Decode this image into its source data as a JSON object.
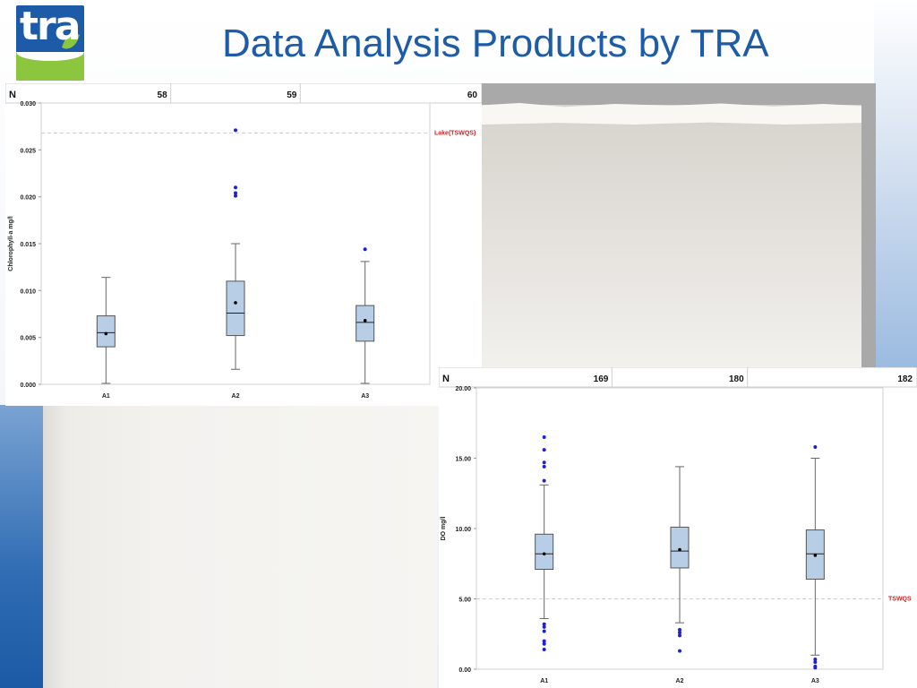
{
  "page": {
    "title": "Data Analysis Products by TRA"
  },
  "logo": {
    "text": "tra"
  },
  "chart_data": [
    {
      "type": "box",
      "n_label": "N",
      "n_values": [
        "58",
        "59",
        "60"
      ],
      "categories": [
        "A1",
        "A2",
        "A3"
      ],
      "ylabel": "Chlorophyll-a mg/l",
      "ylim": [
        0,
        0.03
      ],
      "yticks": [
        0,
        0.005,
        0.01,
        0.015,
        0.02,
        0.025,
        0.03
      ],
      "ytick_labels": [
        "0.000",
        "0.005",
        "0.010",
        "0.015",
        "0.020",
        "0.025",
        "0.030"
      ],
      "reference_line": {
        "value": 0.0268,
        "label": "Lake(TSWQS)",
        "color": "#cc2222"
      },
      "box_color": "#b8cde6",
      "outlier_color": "#1f1fd6",
      "boxes": [
        {
          "category": "A1",
          "whisker_low": 0.0001,
          "q1": 0.004,
          "median": 0.0055,
          "q3": 0.0073,
          "whisker_high": 0.0114,
          "mean": 0.0054,
          "outliers": []
        },
        {
          "category": "A2",
          "whisker_low": 0.0016,
          "q1": 0.0052,
          "median": 0.0076,
          "q3": 0.011,
          "whisker_high": 0.015,
          "mean": 0.0087,
          "outliers": [
            0.0201,
            0.0204,
            0.021,
            0.0271
          ]
        },
        {
          "category": "A3",
          "whisker_low": 0.0001,
          "q1": 0.0046,
          "median": 0.0066,
          "q3": 0.0084,
          "whisker_high": 0.0131,
          "mean": 0.0068,
          "outliers": [
            0.0144
          ]
        }
      ]
    },
    {
      "type": "box",
      "n_label": "N",
      "n_values": [
        "169",
        "180",
        "182"
      ],
      "categories": [
        "A1",
        "A2",
        "A3"
      ],
      "ylabel": "DO mg/l",
      "ylim": [
        0,
        20
      ],
      "yticks": [
        0,
        5,
        10,
        15,
        20
      ],
      "ytick_labels": [
        "0.00",
        "5.00",
        "10.00",
        "15.00",
        "20.00"
      ],
      "reference_line": {
        "value": 5,
        "label": "TSWQS",
        "color": "#cc2222"
      },
      "box_color": "#b8cde6",
      "outlier_color": "#1f1fd6",
      "boxes": [
        {
          "category": "A1",
          "whisker_low": 3.6,
          "q1": 7.1,
          "median": 8.2,
          "q3": 9.6,
          "whisker_high": 13.1,
          "mean": 8.2,
          "outliers": [
            1.4,
            1.8,
            2.0,
            2.7,
            3.0,
            3.2,
            13.4,
            14.4,
            14.7,
            15.6,
            16.5
          ]
        },
        {
          "category": "A2",
          "whisker_low": 3.3,
          "q1": 7.2,
          "median": 8.4,
          "q3": 10.1,
          "whisker_high": 14.4,
          "mean": 8.5,
          "outliers": [
            1.3,
            2.4,
            2.6,
            2.8
          ]
        },
        {
          "category": "A3",
          "whisker_low": 1.0,
          "q1": 6.4,
          "median": 8.2,
          "q3": 9.9,
          "whisker_high": 15.0,
          "mean": 8.1,
          "outliers": [
            0.1,
            0.2,
            0.5,
            0.7,
            15.8
          ]
        }
      ]
    }
  ]
}
